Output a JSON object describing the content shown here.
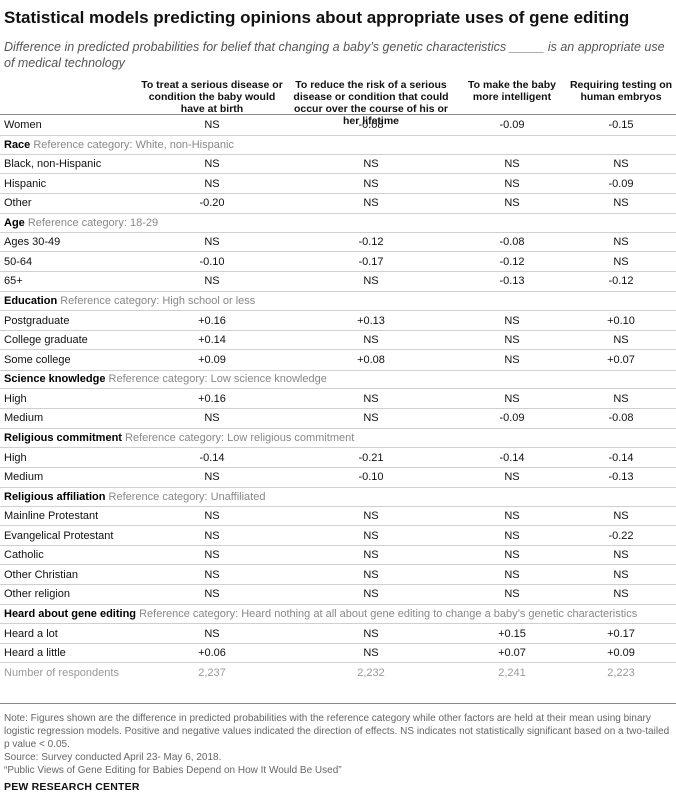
{
  "title": "Statistical models predicting opinions about appropriate uses of gene editing",
  "subtitle": "Difference in predicted probabilities for belief that changing a baby’s genetic characteristics _____ is  an appropriate use of medical technology",
  "columns": [
    "To treat a serious disease or condition the baby would have at birth",
    "To reduce the risk of a serious disease or condition that could occur over the course of his or her lifetime",
    "To make the baby more intelligent",
    "Requiring testing on human embryos"
  ],
  "rows": [
    {
      "type": "row",
      "label": "Women",
      "values": [
        "NS",
        "-0.08",
        "-0.09",
        "-0.15"
      ]
    },
    {
      "type": "section",
      "name": "Race",
      "ref": "Reference category: White, non-Hispanic"
    },
    {
      "type": "row",
      "label": "Black, non-Hispanic",
      "values": [
        "NS",
        "NS",
        "NS",
        "NS"
      ]
    },
    {
      "type": "row",
      "label": "Hispanic",
      "values": [
        "NS",
        "NS",
        "NS",
        "-0.09"
      ]
    },
    {
      "type": "row",
      "label": "Other",
      "values": [
        "-0.20",
        "NS",
        "NS",
        "NS"
      ]
    },
    {
      "type": "section",
      "name": "Age",
      "ref": "Reference category: 18-29"
    },
    {
      "type": "row",
      "label": "Ages 30-49",
      "values": [
        "NS",
        "-0.12",
        "-0.08",
        "NS"
      ]
    },
    {
      "type": "row",
      "label": "50-64",
      "values": [
        "-0.10",
        "-0.17",
        "-0.12",
        "NS"
      ]
    },
    {
      "type": "row",
      "label": "65+",
      "values": [
        "NS",
        "NS",
        "-0.13",
        "-0.12"
      ]
    },
    {
      "type": "section",
      "name": "Education",
      "ref": "Reference category: High school or less"
    },
    {
      "type": "row",
      "label": "Postgraduate",
      "values": [
        "+0.16",
        "+0.13",
        "NS",
        "+0.10"
      ]
    },
    {
      "type": "row",
      "label": "College graduate",
      "values": [
        "+0.14",
        "NS",
        "NS",
        "NS"
      ]
    },
    {
      "type": "row",
      "label": "Some college",
      "values": [
        "+0.09",
        "+0.08",
        "NS",
        "+0.07"
      ]
    },
    {
      "type": "section",
      "name": "Science knowledge",
      "ref": "Reference category: Low science knowledge"
    },
    {
      "type": "row",
      "label": "High",
      "values": [
        "+0.16",
        "NS",
        "NS",
        "NS"
      ]
    },
    {
      "type": "row",
      "label": "Medium",
      "values": [
        "NS",
        "NS",
        "-0.09",
        "-0.08"
      ]
    },
    {
      "type": "section",
      "name": "Religious commitment",
      "ref": "Reference category: Low religious commitment"
    },
    {
      "type": "row",
      "label": "High",
      "values": [
        "-0.14",
        "-0.21",
        "-0.14",
        "-0.14"
      ]
    },
    {
      "type": "row",
      "label": "Medium",
      "values": [
        "NS",
        "-0.10",
        "NS",
        "-0.13"
      ]
    },
    {
      "type": "section",
      "name": "Religious affiliation",
      "ref": "Reference category: Unaffiliated"
    },
    {
      "type": "row",
      "label": "Mainline Protestant",
      "values": [
        "NS",
        "NS",
        "NS",
        "NS"
      ]
    },
    {
      "type": "row",
      "label": "Evangelical Protestant",
      "values": [
        "NS",
        "NS",
        "NS",
        "-0.22"
      ]
    },
    {
      "type": "row",
      "label": "Catholic",
      "values": [
        "NS",
        "NS",
        "NS",
        "NS"
      ]
    },
    {
      "type": "row",
      "label": "Other Christian",
      "values": [
        "NS",
        "NS",
        "NS",
        "NS"
      ]
    },
    {
      "type": "row",
      "label": "Other religion",
      "values": [
        "NS",
        "NS",
        "NS",
        "NS"
      ]
    },
    {
      "type": "section",
      "name": "Heard about gene editing",
      "ref": "Reference category: Heard nothing at all about gene editing to change a baby’s genetic characteristics"
    },
    {
      "type": "row",
      "label": "Heard a lot",
      "values": [
        "NS",
        "NS",
        "+0.15",
        "+0.17"
      ]
    },
    {
      "type": "row",
      "label": "Heard a little",
      "values": [
        "+0.06",
        "NS",
        "+0.07",
        "+0.09"
      ]
    },
    {
      "type": "respondents",
      "label": "Number of respondents",
      "values": [
        "2,237",
        "2,232",
        "2,241",
        "2,223"
      ]
    }
  ],
  "notes": [
    "Note: Figures shown are the difference in predicted probabilities with the reference category while other factors are held at their mean using binary logistic regression models. Positive and negative values indicated the direction of effects. NS indicates not statistically significant based on a two-tailed p value < 0.05.",
    "Source: Survey conducted April 23- May 6, 2018.",
    "“Public Views of Gene Editing for Babies Depend on How It Would Be Used”"
  ],
  "brand": "PEW RESEARCH CENTER"
}
